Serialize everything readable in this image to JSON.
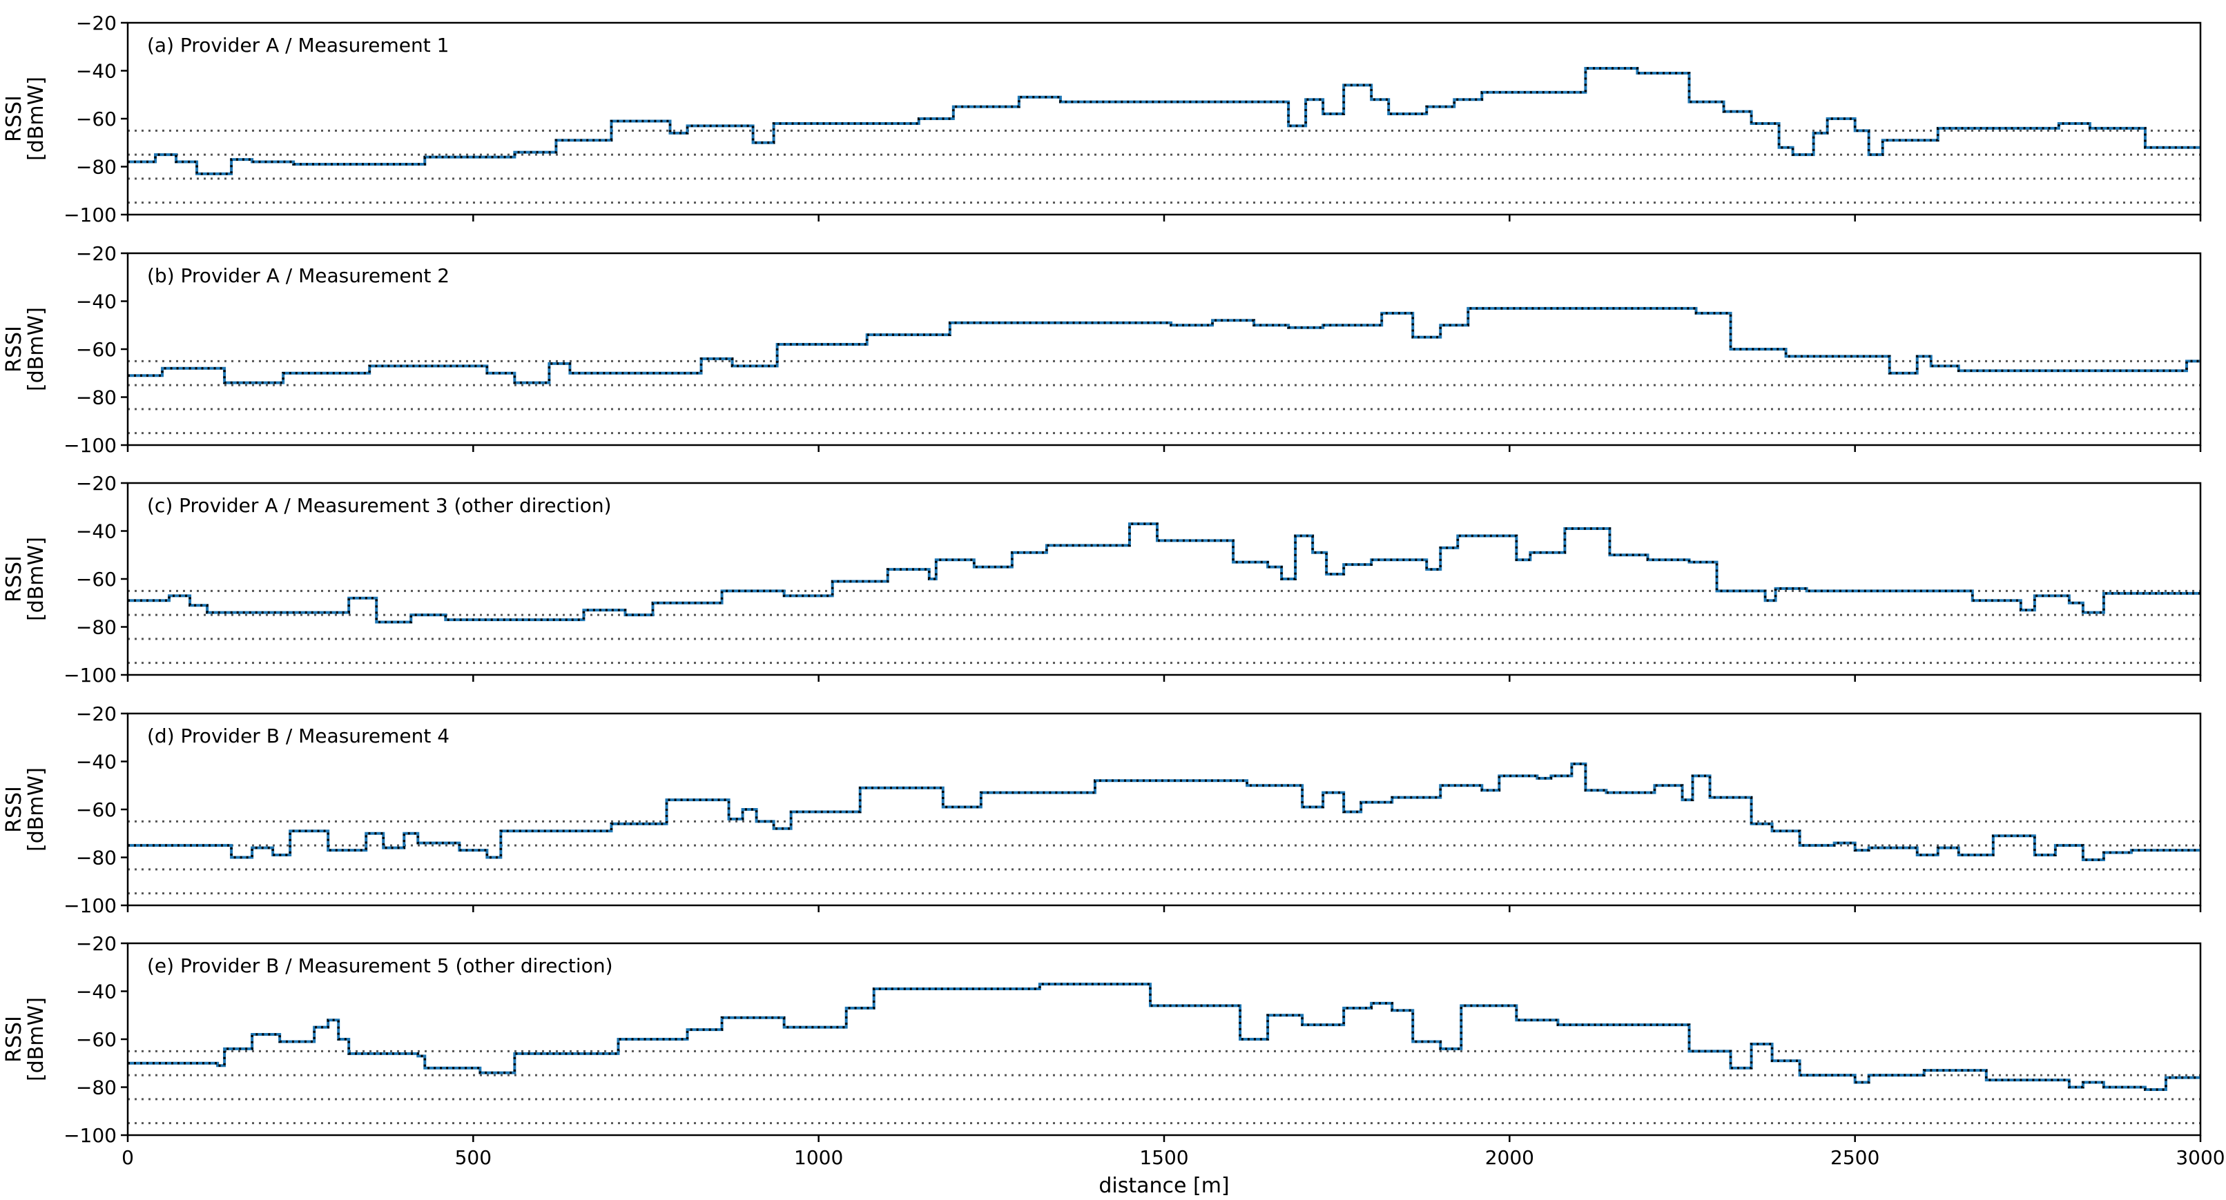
{
  "chart_data": {
    "type": "line",
    "xlabel": "distance [m]",
    "xlim": [
      0,
      3000
    ],
    "x_ticks": [
      0,
      500,
      1000,
      1500,
      2000,
      2500,
      3000
    ],
    "ylabel_lines": [
      "RSSI",
      "[dBmW]"
    ],
    "ylim": [
      -100,
      -20
    ],
    "y_ticks": [
      -100,
      -80,
      -60,
      -40,
      -20
    ],
    "reference_lines": [
      -65,
      -75,
      -85,
      -95
    ],
    "colors": {
      "signal": "#1f77b4",
      "signal_dotted": "#000000",
      "reference": "#555555"
    },
    "panels": [
      {
        "title": "(a) Provider A / Measurement 1",
        "steps": [
          [
            0,
            -78
          ],
          [
            40,
            -75
          ],
          [
            70,
            -78
          ],
          [
            100,
            -83
          ],
          [
            150,
            -77
          ],
          [
            180,
            -78
          ],
          [
            240,
            -79
          ],
          [
            430,
            -76
          ],
          [
            560,
            -74
          ],
          [
            620,
            -69
          ],
          [
            700,
            -61
          ],
          [
            785,
            -66
          ],
          [
            810,
            -63
          ],
          [
            905,
            -70
          ],
          [
            935,
            -62
          ],
          [
            1080,
            -62
          ],
          [
            1145,
            -60
          ],
          [
            1195,
            -55
          ],
          [
            1260,
            -55
          ],
          [
            1290,
            -51
          ],
          [
            1350,
            -53
          ],
          [
            1660,
            -53
          ],
          [
            1680,
            -63
          ],
          [
            1705,
            -52
          ],
          [
            1730,
            -58
          ],
          [
            1760,
            -46
          ],
          [
            1800,
            -52
          ],
          [
            1825,
            -58
          ],
          [
            1880,
            -55
          ],
          [
            1920,
            -52
          ],
          [
            1960,
            -49
          ],
          [
            2110,
            -39
          ],
          [
            2185,
            -41
          ],
          [
            2260,
            -53
          ],
          [
            2310,
            -57
          ],
          [
            2350,
            -62
          ],
          [
            2390,
            -72
          ],
          [
            2410,
            -75
          ],
          [
            2440,
            -66
          ],
          [
            2460,
            -60
          ],
          [
            2500,
            -65
          ],
          [
            2520,
            -75
          ],
          [
            2540,
            -69
          ],
          [
            2600,
            -69
          ],
          [
            2620,
            -64
          ],
          [
            2795,
            -62
          ],
          [
            2840,
            -64
          ],
          [
            2920,
            -72
          ],
          [
            3000,
            -72
          ]
        ]
      },
      {
        "title": "(b) Provider A / Measurement 2",
        "steps": [
          [
            0,
            -71
          ],
          [
            50,
            -68
          ],
          [
            140,
            -74
          ],
          [
            225,
            -70
          ],
          [
            350,
            -67
          ],
          [
            520,
            -70
          ],
          [
            560,
            -74
          ],
          [
            610,
            -66
          ],
          [
            640,
            -70
          ],
          [
            830,
            -64
          ],
          [
            875,
            -67
          ],
          [
            940,
            -58
          ],
          [
            1070,
            -54
          ],
          [
            1190,
            -49
          ],
          [
            1510,
            -50
          ],
          [
            1570,
            -48
          ],
          [
            1630,
            -50
          ],
          [
            1680,
            -51
          ],
          [
            1730,
            -50
          ],
          [
            1815,
            -45
          ],
          [
            1860,
            -55
          ],
          [
            1900,
            -50
          ],
          [
            1940,
            -43
          ],
          [
            2270,
            -45
          ],
          [
            2320,
            -60
          ],
          [
            2400,
            -63
          ],
          [
            2550,
            -70
          ],
          [
            2590,
            -63
          ],
          [
            2610,
            -67
          ],
          [
            2650,
            -69
          ],
          [
            2980,
            -65
          ],
          [
            3000,
            -65
          ]
        ]
      },
      {
        "title": "(c) Provider A / Measurement 3 (other direction)",
        "steps": [
          [
            0,
            -69
          ],
          [
            60,
            -67
          ],
          [
            90,
            -71
          ],
          [
            115,
            -74
          ],
          [
            320,
            -68
          ],
          [
            360,
            -78
          ],
          [
            410,
            -75
          ],
          [
            460,
            -77
          ],
          [
            660,
            -73
          ],
          [
            720,
            -75
          ],
          [
            760,
            -70
          ],
          [
            860,
            -65
          ],
          [
            950,
            -67
          ],
          [
            1020,
            -61
          ],
          [
            1100,
            -56
          ],
          [
            1160,
            -60
          ],
          [
            1170,
            -52
          ],
          [
            1225,
            -55
          ],
          [
            1280,
            -49
          ],
          [
            1330,
            -46
          ],
          [
            1450,
            -37
          ],
          [
            1490,
            -44
          ],
          [
            1600,
            -53
          ],
          [
            1650,
            -55
          ],
          [
            1670,
            -60
          ],
          [
            1690,
            -42
          ],
          [
            1715,
            -49
          ],
          [
            1735,
            -58
          ],
          [
            1760,
            -54
          ],
          [
            1800,
            -52
          ],
          [
            1880,
            -56
          ],
          [
            1900,
            -47
          ],
          [
            1925,
            -42
          ],
          [
            2010,
            -52
          ],
          [
            2030,
            -49
          ],
          [
            2080,
            -39
          ],
          [
            2145,
            -50
          ],
          [
            2200,
            -52
          ],
          [
            2260,
            -53
          ],
          [
            2300,
            -65
          ],
          [
            2370,
            -69
          ],
          [
            2385,
            -64
          ],
          [
            2430,
            -65
          ],
          [
            2670,
            -69
          ],
          [
            2740,
            -73
          ],
          [
            2760,
            -67
          ],
          [
            2810,
            -70
          ],
          [
            2830,
            -74
          ],
          [
            2860,
            -66
          ],
          [
            3000,
            -66
          ]
        ]
      },
      {
        "title": "(d) Provider B / Measurement 4",
        "steps": [
          [
            0,
            -75
          ],
          [
            150,
            -80
          ],
          [
            180,
            -76
          ],
          [
            210,
            -79
          ],
          [
            235,
            -69
          ],
          [
            290,
            -77
          ],
          [
            345,
            -70
          ],
          [
            370,
            -76
          ],
          [
            400,
            -70
          ],
          [
            420,
            -74
          ],
          [
            480,
            -77
          ],
          [
            520,
            -80
          ],
          [
            540,
            -69
          ],
          [
            700,
            -66
          ],
          [
            780,
            -56
          ],
          [
            870,
            -64
          ],
          [
            890,
            -60
          ],
          [
            910,
            -65
          ],
          [
            935,
            -68
          ],
          [
            960,
            -61
          ],
          [
            1060,
            -51
          ],
          [
            1180,
            -59
          ],
          [
            1235,
            -53
          ],
          [
            1350,
            -53
          ],
          [
            1400,
            -48
          ],
          [
            1620,
            -50
          ],
          [
            1700,
            -59
          ],
          [
            1730,
            -53
          ],
          [
            1760,
            -61
          ],
          [
            1785,
            -57
          ],
          [
            1830,
            -55
          ],
          [
            1900,
            -50
          ],
          [
            1960,
            -52
          ],
          [
            1985,
            -46
          ],
          [
            2040,
            -47
          ],
          [
            2060,
            -46
          ],
          [
            2090,
            -41
          ],
          [
            2110,
            -52
          ],
          [
            2140,
            -53
          ],
          [
            2210,
            -50
          ],
          [
            2250,
            -56
          ],
          [
            2265,
            -46
          ],
          [
            2290,
            -55
          ],
          [
            2350,
            -66
          ],
          [
            2380,
            -69
          ],
          [
            2420,
            -75
          ],
          [
            2470,
            -74
          ],
          [
            2500,
            -77
          ],
          [
            2520,
            -76
          ],
          [
            2590,
            -79
          ],
          [
            2620,
            -76
          ],
          [
            2650,
            -79
          ],
          [
            2700,
            -71
          ],
          [
            2760,
            -79
          ],
          [
            2790,
            -75
          ],
          [
            2830,
            -81
          ],
          [
            2860,
            -78
          ],
          [
            2900,
            -77
          ],
          [
            3000,
            -77
          ]
        ]
      },
      {
        "title": "(e) Provider B / Measurement 5 (other direction)",
        "steps": [
          [
            0,
            -70
          ],
          [
            130,
            -71
          ],
          [
            140,
            -64
          ],
          [
            180,
            -58
          ],
          [
            220,
            -61
          ],
          [
            270,
            -55
          ],
          [
            290,
            -52
          ],
          [
            305,
            -60
          ],
          [
            320,
            -66
          ],
          [
            420,
            -67
          ],
          [
            430,
            -72
          ],
          [
            510,
            -74
          ],
          [
            560,
            -66
          ],
          [
            710,
            -60
          ],
          [
            810,
            -56
          ],
          [
            860,
            -51
          ],
          [
            950,
            -55
          ],
          [
            1040,
            -47
          ],
          [
            1080,
            -39
          ],
          [
            1320,
            -37
          ],
          [
            1480,
            -46
          ],
          [
            1610,
            -60
          ],
          [
            1650,
            -50
          ],
          [
            1700,
            -54
          ],
          [
            1760,
            -47
          ],
          [
            1800,
            -45
          ],
          [
            1830,
            -48
          ],
          [
            1860,
            -61
          ],
          [
            1900,
            -64
          ],
          [
            1930,
            -46
          ],
          [
            2010,
            -52
          ],
          [
            2070,
            -54
          ],
          [
            2250,
            -54
          ],
          [
            2260,
            -65
          ],
          [
            2320,
            -72
          ],
          [
            2350,
            -62
          ],
          [
            2380,
            -69
          ],
          [
            2420,
            -75
          ],
          [
            2500,
            -78
          ],
          [
            2520,
            -75
          ],
          [
            2600,
            -73
          ],
          [
            2690,
            -77
          ],
          [
            2790,
            -77
          ],
          [
            2810,
            -80
          ],
          [
            2830,
            -78
          ],
          [
            2860,
            -80
          ],
          [
            2920,
            -81
          ],
          [
            2950,
            -76
          ],
          [
            3000,
            -76
          ]
        ]
      }
    ]
  }
}
